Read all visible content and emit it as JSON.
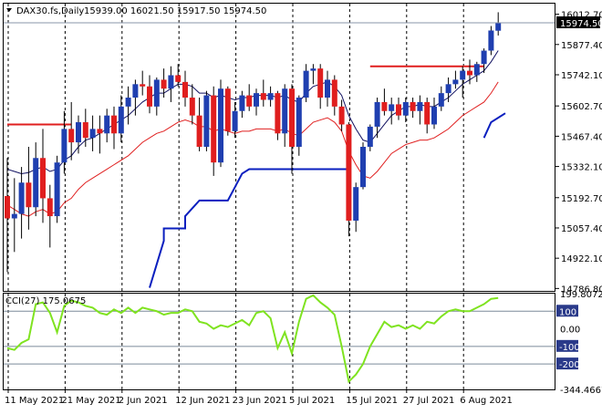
{
  "header": {
    "symbol": "DAX30.fs,Daily",
    "ohlc": "15939.00 16021.50 15917.50 15974.50"
  },
  "indicator": {
    "label": "CCI(27) 175.0675"
  },
  "colors": {
    "bull_candle": "#1f3fb0",
    "bear_candle": "#e01e1e",
    "midline": "#101060",
    "lower_band": "#e02020",
    "support_line": "#0a1fbf",
    "resistance_line": "#e01e1e",
    "cci_line": "#7fe320",
    "grid": "#000000",
    "price_marker_bg": "#000000"
  },
  "chart_data": [
    {
      "type": "candlestick",
      "title": "DAX30.fs,Daily",
      "ohlc_last": {
        "open": 15939.0,
        "high": 16021.5,
        "low": 15917.5,
        "close": 15974.5
      },
      "current_price_label": "15974.50",
      "y_ticks": [
        "16012.70",
        "15877.40",
        "15742.10",
        "15602.70",
        "15467.40",
        "15332.10",
        "15192.70",
        "15057.40",
        "14922.10",
        "14786.80"
      ],
      "y_tick_values": [
        16012.7,
        15877.4,
        15742.1,
        15602.7,
        15467.4,
        15332.1,
        15192.7,
        15057.4,
        14922.1,
        14786.8
      ],
      "ylim": [
        14776,
        16060
      ],
      "x_ticks": [
        "11 May 2021",
        "21 May 2021",
        "2 Jun 2021",
        "12 Jun 2021",
        "23 Jun 2021",
        "5 Jul 2021",
        "15 Jul 2021",
        "27 Jul 2021",
        "6 Aug 2021"
      ],
      "x_tick_bars": [
        0,
        8,
        16,
        24,
        32,
        40,
        48,
        56,
        64
      ],
      "grid": "dashed verticals",
      "candles": [
        [
          15200,
          15370,
          14860,
          15100
        ],
        [
          15100,
          15280,
          14950,
          15120
        ],
        [
          15120,
          15330,
          15010,
          15260
        ],
        [
          15260,
          15420,
          15050,
          15150
        ],
        [
          15150,
          15440,
          15110,
          15370
        ],
        [
          15370,
          15500,
          15080,
          15190
        ],
        [
          15190,
          15250,
          14970,
          15110
        ],
        [
          15110,
          15380,
          15080,
          15350
        ],
        [
          15350,
          15580,
          15300,
          15500
        ],
        [
          15500,
          15620,
          15360,
          15440
        ],
        [
          15440,
          15560,
          15390,
          15530
        ],
        [
          15530,
          15590,
          15420,
          15460
        ],
        [
          15460,
          15560,
          15400,
          15500
        ],
        [
          15500,
          15560,
          15390,
          15480
        ],
        [
          15480,
          15590,
          15440,
          15560
        ],
        [
          15560,
          15600,
          15410,
          15480
        ],
        [
          15480,
          15650,
          15440,
          15600
        ],
        [
          15600,
          15690,
          15520,
          15640
        ],
        [
          15640,
          15720,
          15560,
          15700
        ],
        [
          15700,
          15760,
          15650,
          15690
        ],
        [
          15690,
          15740,
          15570,
          15600
        ],
        [
          15600,
          15730,
          15560,
          15720
        ],
        [
          15720,
          15770,
          15640,
          15680
        ],
        [
          15680,
          15780,
          15620,
          15740
        ],
        [
          15740,
          15790,
          15690,
          15710
        ],
        [
          15710,
          15760,
          15600,
          15640
        ],
        [
          15640,
          15700,
          15520,
          15560
        ],
        [
          15560,
          15640,
          15400,
          15420
        ],
        [
          15420,
          15670,
          15400,
          15650
        ],
        [
          15650,
          15690,
          15290,
          15350
        ],
        [
          15350,
          15720,
          15330,
          15680
        ],
        [
          15680,
          15690,
          15470,
          15490
        ],
        [
          15490,
          15620,
          15460,
          15580
        ],
        [
          15580,
          15670,
          15550,
          15650
        ],
        [
          15650,
          15700,
          15580,
          15600
        ],
        [
          15600,
          15680,
          15560,
          15660
        ],
        [
          15660,
          15720,
          15600,
          15630
        ],
        [
          15630,
          15690,
          15600,
          15660
        ],
        [
          15660,
          15670,
          15450,
          15480
        ],
        [
          15480,
          15700,
          15420,
          15680
        ],
        [
          15680,
          15700,
          15300,
          15420
        ],
        [
          15420,
          15650,
          15380,
          15640
        ],
        [
          15640,
          15790,
          15620,
          15760
        ],
        [
          15760,
          15790,
          15700,
          15770
        ],
        [
          15770,
          15790,
          15590,
          15640
        ],
        [
          15640,
          15760,
          15600,
          15720
        ],
        [
          15720,
          15740,
          15560,
          15600
        ],
        [
          15600,
          15630,
          15490,
          15520
        ],
        [
          15520,
          15530,
          15020,
          15090
        ],
        [
          15090,
          15260,
          15040,
          15240
        ],
        [
          15240,
          15440,
          15230,
          15420
        ],
        [
          15420,
          15520,
          15400,
          15510
        ],
        [
          15510,
          15640,
          15460,
          15620
        ],
        [
          15620,
          15680,
          15560,
          15580
        ],
        [
          15580,
          15640,
          15520,
          15610
        ],
        [
          15610,
          15640,
          15540,
          15560
        ],
        [
          15560,
          15640,
          15530,
          15620
        ],
        [
          15620,
          15640,
          15550,
          15580
        ],
        [
          15580,
          15650,
          15520,
          15620
        ],
        [
          15620,
          15640,
          15480,
          15520
        ],
        [
          15520,
          15640,
          15500,
          15600
        ],
        [
          15600,
          15690,
          15580,
          15660
        ],
        [
          15660,
          15730,
          15620,
          15700
        ],
        [
          15700,
          15760,
          15680,
          15720
        ],
        [
          15720,
          15780,
          15640,
          15760
        ],
        [
          15760,
          15810,
          15700,
          15740
        ],
        [
          15740,
          15800,
          15710,
          15790
        ],
        [
          15790,
          15860,
          15750,
          15850
        ],
        [
          15850,
          15960,
          15830,
          15940
        ],
        [
          15939,
          16021.5,
          15917.5,
          15974.5
        ]
      ],
      "midline": [
        15320,
        15310,
        15300,
        15305,
        15320,
        15330,
        15310,
        15320,
        15360,
        15380,
        15420,
        15450,
        15460,
        15480,
        15500,
        15520,
        15540,
        15560,
        15590,
        15620,
        15640,
        15660,
        15660,
        15680,
        15700,
        15700,
        15690,
        15660,
        15660,
        15640,
        15650,
        15640,
        15630,
        15640,
        15640,
        15650,
        15650,
        15650,
        15640,
        15650,
        15630,
        15620,
        15660,
        15690,
        15700,
        15710,
        15690,
        15650,
        15560,
        15500,
        15450,
        15440,
        15480,
        15520,
        15560,
        15580,
        15600,
        15600,
        15610,
        15600,
        15600,
        15620,
        15640,
        15670,
        15700,
        15720,
        15740,
        15760,
        15800,
        15850
      ],
      "lower_band": [
        15160,
        15140,
        15120,
        15110,
        15130,
        15140,
        15120,
        15130,
        15170,
        15190,
        15230,
        15260,
        15280,
        15300,
        15320,
        15340,
        15360,
        15380,
        15410,
        15440,
        15460,
        15480,
        15490,
        15510,
        15530,
        15540,
        15530,
        15510,
        15510,
        15490,
        15500,
        15490,
        15480,
        15490,
        15490,
        15500,
        15500,
        15500,
        15490,
        15500,
        15480,
        15470,
        15500,
        15530,
        15540,
        15550,
        15530,
        15490,
        15400,
        15340,
        15290,
        15280,
        15310,
        15350,
        15390,
        15410,
        15430,
        15440,
        15450,
        15450,
        15460,
        15480,
        15500,
        15530,
        15560,
        15580,
        15600,
        15620,
        15660,
        15710
      ],
      "support_line": [
        [
          23,
          15330
        ],
        [
          48,
          15330
        ]
      ],
      "support_steps": [
        [
          20,
          14790
        ],
        [
          22,
          15000
        ],
        [
          22,
          15055
        ],
        [
          25,
          15055
        ],
        [
          25,
          15110
        ],
        [
          27,
          15180
        ],
        [
          31,
          15180
        ],
        [
          33,
          15300
        ],
        [
          34,
          15320
        ],
        [
          48,
          15320
        ]
      ],
      "resistance_lines": [
        [
          [
            0,
            15520
          ],
          [
            9,
            15520
          ]
        ],
        [
          [
            51,
            15780
          ],
          [
            67,
            15780
          ]
        ]
      ],
      "partial_line": [
        [
          67,
          15460
        ],
        [
          68,
          15530
        ],
        [
          70,
          15570
        ]
      ]
    },
    {
      "type": "line",
      "title": "CCI(27) 175.0675",
      "y_ticks": [
        "199.8072",
        "100",
        "0.00",
        "-100",
        "-200",
        "-344.4667"
      ],
      "y_tick_values": [
        199.8072,
        100,
        0,
        -100,
        -200,
        -344.4667
      ],
      "ylim": [
        -344.4667,
        199.8072
      ],
      "levels": [
        100,
        -100,
        -200
      ],
      "values": [
        -110,
        -120,
        -80,
        -60,
        140,
        150,
        90,
        -20,
        130,
        160,
        150,
        130,
        120,
        90,
        80,
        110,
        90,
        120,
        90,
        120,
        110,
        100,
        80,
        90,
        90,
        110,
        100,
        40,
        30,
        0,
        20,
        10,
        30,
        50,
        20,
        90,
        100,
        60,
        -110,
        -20,
        -140,
        40,
        170,
        190,
        150,
        120,
        80,
        -100,
        -300,
        -260,
        -200,
        -100,
        -30,
        40,
        10,
        20,
        0,
        20,
        0,
        40,
        30,
        70,
        100,
        110,
        100,
        100,
        120,
        140,
        170,
        175
      ]
    }
  ]
}
